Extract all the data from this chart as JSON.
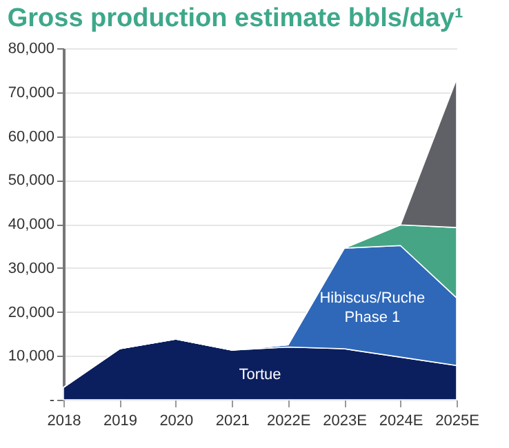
{
  "chart_data": {
    "type": "area",
    "title": "Gross production estimate bbls/day¹",
    "categories": [
      "2018",
      "2019",
      "2020",
      "2021",
      "2022E",
      "2023E",
      "2024E",
      "2025E"
    ],
    "stacked": true,
    "series": [
      {
        "name": "Tortue",
        "color": "#0b1f5e",
        "values": [
          2800,
          11600,
          13800,
          11300,
          12000,
          11600,
          9700,
          7800
        ]
      },
      {
        "name": "Hibiscus/Ruche Phase 1",
        "color": "#2f68b9",
        "values": [
          0,
          0,
          0,
          0,
          500,
          22900,
          25400,
          15400
        ]
      },
      {
        "color": "#46a585",
        "values": [
          0,
          0,
          0,
          0,
          0,
          0,
          4700,
          16000
        ]
      },
      {
        "color": "#606166",
        "values": [
          0,
          0,
          0,
          0,
          0,
          0,
          0,
          33800
        ]
      }
    ],
    "ylim": [
      0,
      80000
    ],
    "yticks": [
      {
        "value": 0,
        "label": "-"
      },
      {
        "value": 10000,
        "label": "10,000"
      },
      {
        "value": 20000,
        "label": "20,000"
      },
      {
        "value": 30000,
        "label": "30,000"
      },
      {
        "value": 40000,
        "label": "40,000"
      },
      {
        "value": 50000,
        "label": "50,000"
      },
      {
        "value": 60000,
        "label": "60,000"
      },
      {
        "value": 70000,
        "label": "70,000"
      },
      {
        "value": 80000,
        "label": "80,000"
      }
    ],
    "grid": "y",
    "legend": false
  }
}
